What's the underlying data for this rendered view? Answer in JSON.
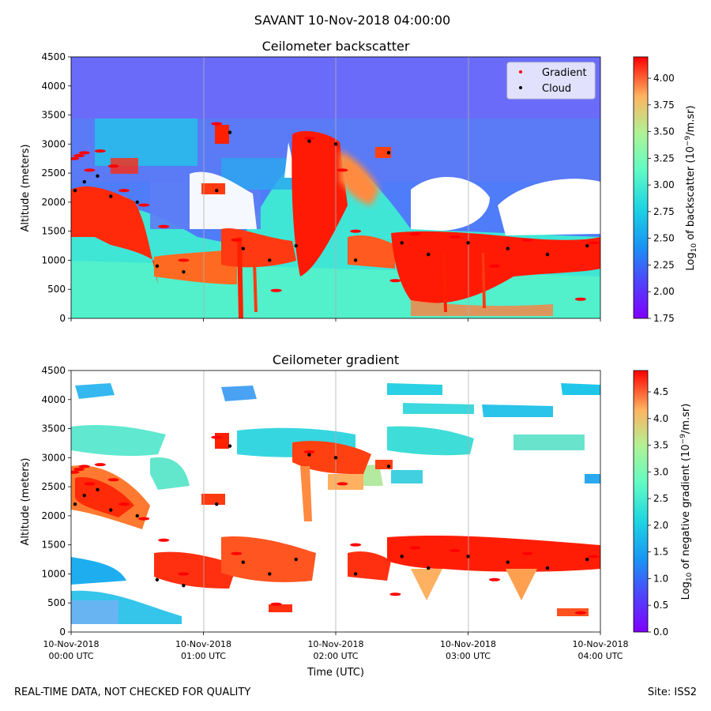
{
  "suptitle": "SAVANT 10-Nov-2018 04:00:00",
  "footer": {
    "left": "REAL-TIME DATA, NOT CHECKED FOR QUALITY",
    "right": "Site: ISS2"
  },
  "xaxis": {
    "label": "Time (UTC)",
    "range_hours": [
      0,
      4
    ],
    "ticks": [
      {
        "t": 0,
        "line1": "10-Nov-2018",
        "line2": "00:00 UTC"
      },
      {
        "t": 1,
        "line1": "10-Nov-2018",
        "line2": "01:00 UTC"
      },
      {
        "t": 2,
        "line1": "10-Nov-2018",
        "line2": "02:00 UTC"
      },
      {
        "t": 3,
        "line1": "10-Nov-2018",
        "line2": "03:00 UTC"
      },
      {
        "t": 4,
        "line1": "10-Nov-2018",
        "line2": "04:00 UTC"
      }
    ]
  },
  "colors": {
    "gradient_marker": "#ff0000",
    "cloud_marker": "#000000",
    "colormap": "rainbow"
  },
  "chart_data": [
    {
      "type": "heatmap",
      "title": "Ceilometer backscatter",
      "ylabel": "Altitude (meters)",
      "ylim": [
        0,
        4500
      ],
      "yticks": [
        0,
        500,
        1000,
        1500,
        2000,
        2500,
        3000,
        3500,
        4000,
        4500
      ],
      "colorbar": {
        "label": "Log10 of backscatter (10^-9/m.sr)",
        "label_main": "Log",
        "label_sub": "10",
        "label_mid": " of backscatter (10",
        "label_sup": "−9",
        "label_end": "/m.sr)",
        "range": [
          1.75,
          4.2
        ],
        "ticks": [
          1.75,
          2.0,
          2.25,
          2.5,
          2.75,
          3.0,
          3.25,
          3.5,
          3.75,
          4.0
        ]
      },
      "legend": {
        "position": "top-right",
        "entries": [
          {
            "name": "Gradient",
            "color": "#ff0000"
          },
          {
            "name": "Cloud",
            "color": "#000000"
          }
        ]
      },
      "grid": "vertical only"
    },
    {
      "type": "heatmap",
      "title": "Ceilometer gradient",
      "ylabel": "Altitude (meters)",
      "ylim": [
        0,
        4500
      ],
      "yticks": [
        0,
        500,
        1000,
        1500,
        2000,
        2500,
        3000,
        3500,
        4000,
        4500
      ],
      "colorbar": {
        "label": "Log10 of negative gradient (10^-9/m.sr)",
        "label_main": "Log",
        "label_sub": "10",
        "label_mid": " of negative gradient (10",
        "label_sup": "−9",
        "label_end": "/m.sr)",
        "range": [
          0,
          4.9
        ],
        "ticks": [
          0.0,
          0.5,
          1.0,
          1.5,
          2.0,
          2.5,
          3.0,
          3.5,
          4.0,
          4.5
        ]
      },
      "grid": "vertical only"
    }
  ],
  "series": {
    "gradient": [
      {
        "t": 0.02,
        "z": 2750
      },
      {
        "t": 0.06,
        "z": 2800
      },
      {
        "t": 0.1,
        "z": 2850
      },
      {
        "t": 0.14,
        "z": 2550
      },
      {
        "t": 0.22,
        "z": 2880
      },
      {
        "t": 0.32,
        "z": 2620
      },
      {
        "t": 0.4,
        "z": 2200
      },
      {
        "t": 0.55,
        "z": 1950
      },
      {
        "t": 0.7,
        "z": 1580
      },
      {
        "t": 0.85,
        "z": 1000
      },
      {
        "t": 1.1,
        "z": 3350
      },
      {
        "t": 1.25,
        "z": 1350
      },
      {
        "t": 1.55,
        "z": 480
      },
      {
        "t": 1.8,
        "z": 3100
      },
      {
        "t": 2.05,
        "z": 2550
      },
      {
        "t": 2.15,
        "z": 1500
      },
      {
        "t": 2.45,
        "z": 650
      },
      {
        "t": 2.6,
        "z": 1450
      },
      {
        "t": 2.9,
        "z": 1400
      },
      {
        "t": 3.2,
        "z": 900
      },
      {
        "t": 3.45,
        "z": 1350
      },
      {
        "t": 3.85,
        "z": 330
      },
      {
        "t": 3.95,
        "z": 1300
      }
    ],
    "cloud": [
      {
        "t": 0.03,
        "z": 2200
      },
      {
        "t": 0.1,
        "z": 2350
      },
      {
        "t": 0.2,
        "z": 2450
      },
      {
        "t": 0.3,
        "z": 2100
      },
      {
        "t": 0.5,
        "z": 2000
      },
      {
        "t": 0.65,
        "z": 900
      },
      {
        "t": 0.85,
        "z": 800
      },
      {
        "t": 1.1,
        "z": 2200
      },
      {
        "t": 1.2,
        "z": 3200
      },
      {
        "t": 1.3,
        "z": 1200
      },
      {
        "t": 1.5,
        "z": 1000
      },
      {
        "t": 1.7,
        "z": 1250
      },
      {
        "t": 1.8,
        "z": 3050
      },
      {
        "t": 2.0,
        "z": 3000
      },
      {
        "t": 2.15,
        "z": 1000
      },
      {
        "t": 2.4,
        "z": 2850
      },
      {
        "t": 2.5,
        "z": 1300
      },
      {
        "t": 2.7,
        "z": 1100
      },
      {
        "t": 3.0,
        "z": 1300
      },
      {
        "t": 3.3,
        "z": 1200
      },
      {
        "t": 3.6,
        "z": 1100
      },
      {
        "t": 3.9,
        "z": 1250
      }
    ]
  }
}
